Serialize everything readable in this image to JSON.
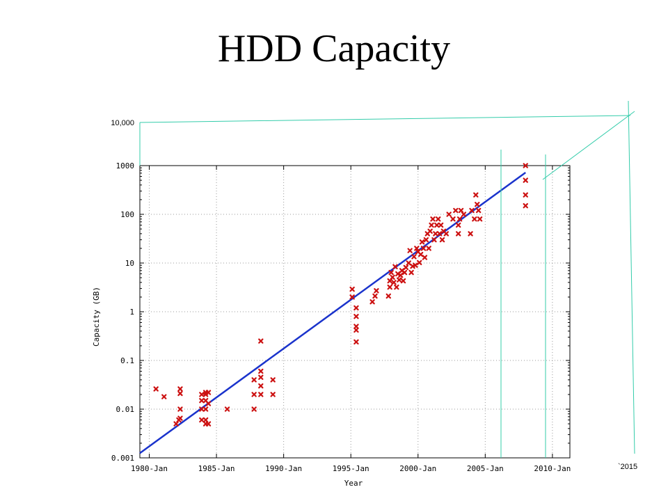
{
  "slide": {
    "title": "HDD Capacity"
  },
  "chart_data": {
    "type": "scatter",
    "title": "HDD Capacity",
    "xlabel": "Year",
    "ylabel": "Capacity (GB)",
    "x_scale": "time",
    "y_scale": "log",
    "xlim": [
      1979.3,
      2011.3
    ],
    "ylim": [
      0.001,
      1000
    ],
    "x_ticks": [
      {
        "label": "1980-Jan",
        "value": 1980
      },
      {
        "label": "1985-Jan",
        "value": 1985
      },
      {
        "label": "1990-Jan",
        "value": 1990
      },
      {
        "label": "1995-Jan",
        "value": 1995
      },
      {
        "label": "2000-Jan",
        "value": 2000
      },
      {
        "label": "2005-Jan",
        "value": 2005
      },
      {
        "label": "2010-Jan",
        "value": 2010
      }
    ],
    "y_ticks": [
      {
        "label": "1000",
        "value": 1000
      },
      {
        "label": "100",
        "value": 100
      },
      {
        "label": "10",
        "value": 10
      },
      {
        "label": "1",
        "value": 1
      },
      {
        "label": "0.1",
        "value": 0.1
      },
      {
        "label": "0.01",
        "value": 0.01
      },
      {
        "label": "0.001",
        "value": 0.001
      }
    ],
    "grid": true,
    "legend": "none",
    "colors": {
      "points": "#cc1111",
      "trend": "#1a33cc",
      "annotation": "#33ccaa"
    },
    "series": [
      {
        "type": "scatter",
        "points": [
          [
            1980.5,
            0.026
          ],
          [
            1981.1,
            0.018
          ],
          [
            1982.0,
            0.005
          ],
          [
            1982.2,
            0.006
          ],
          [
            1982.3,
            0.026
          ],
          [
            1982.3,
            0.021
          ],
          [
            1982.3,
            0.01
          ],
          [
            1982.3,
            0.0065
          ],
          [
            1983.9,
            0.02
          ],
          [
            1983.9,
            0.015
          ],
          [
            1983.9,
            0.01
          ],
          [
            1983.9,
            0.006
          ],
          [
            1984.2,
            0.022
          ],
          [
            1984.2,
            0.02
          ],
          [
            1984.2,
            0.015
          ],
          [
            1984.2,
            0.01
          ],
          [
            1984.2,
            0.006
          ],
          [
            1984.2,
            0.005
          ],
          [
            1984.4,
            0.022
          ],
          [
            1984.4,
            0.013
          ],
          [
            1984.4,
            0.005
          ],
          [
            1985.8,
            0.01
          ],
          [
            1987.8,
            0.04
          ],
          [
            1987.8,
            0.02
          ],
          [
            1987.8,
            0.01
          ],
          [
            1988.3,
            0.25
          ],
          [
            1988.3,
            0.06
          ],
          [
            1988.3,
            0.045
          ],
          [
            1988.3,
            0.03
          ],
          [
            1988.3,
            0.02
          ],
          [
            1989.2,
            0.04
          ],
          [
            1989.2,
            0.02
          ],
          [
            1995.1,
            2.9
          ],
          [
            1995.1,
            2.0
          ],
          [
            1995.4,
            1.2
          ],
          [
            1995.4,
            0.8
          ],
          [
            1995.4,
            0.5
          ],
          [
            1995.4,
            0.42
          ],
          [
            1995.4,
            0.24
          ],
          [
            1996.6,
            1.6
          ],
          [
            1996.8,
            2.1
          ],
          [
            1996.9,
            2.7
          ],
          [
            1997.8,
            2.1
          ],
          [
            1997.9,
            3.2
          ],
          [
            1997.9,
            4.3
          ],
          [
            1998.0,
            6.4
          ],
          [
            1998.1,
            5.1
          ],
          [
            1998.2,
            4.0
          ],
          [
            1998.3,
            8.4
          ],
          [
            1998.4,
            3.2
          ],
          [
            1998.5,
            6.0
          ],
          [
            1998.6,
            4.5
          ],
          [
            1998.7,
            5.6
          ],
          [
            1998.8,
            7.0
          ],
          [
            1998.9,
            4.3
          ],
          [
            1999.0,
            6.4
          ],
          [
            1999.1,
            8.1
          ],
          [
            1999.3,
            10.0
          ],
          [
            1999.4,
            18.0
          ],
          [
            1999.5,
            6.4
          ],
          [
            1999.6,
            8.6
          ],
          [
            1999.7,
            13.5
          ],
          [
            1999.8,
            9.0
          ],
          [
            1999.9,
            20.0
          ],
          [
            2000.0,
            17.0
          ],
          [
            2000.1,
            10.2
          ],
          [
            2000.2,
            15.0
          ],
          [
            2000.3,
            27.0
          ],
          [
            2000.4,
            20.0
          ],
          [
            2000.5,
            13.0
          ],
          [
            2000.6,
            30.0
          ],
          [
            2000.7,
            40.0
          ],
          [
            2000.8,
            20.0
          ],
          [
            2000.9,
            45.0
          ],
          [
            2001.0,
            60.0
          ],
          [
            2001.1,
            80.0
          ],
          [
            2001.2,
            30.0
          ],
          [
            2001.3,
            40.0
          ],
          [
            2001.4,
            60.0
          ],
          [
            2001.5,
            80.0
          ],
          [
            2001.6,
            40.0
          ],
          [
            2001.7,
            60.0
          ],
          [
            2001.8,
            30.0
          ],
          [
            2001.9,
            45.0
          ],
          [
            2002.1,
            40.0
          ],
          [
            2002.3,
            100.0
          ],
          [
            2002.6,
            80.0
          ],
          [
            2002.8,
            120.0
          ],
          [
            2003.0,
            40.0
          ],
          [
            2003.0,
            60.0
          ],
          [
            2003.1,
            80.0
          ],
          [
            2003.2,
            120.0
          ],
          [
            2003.4,
            100.0
          ],
          [
            2003.9,
            40.0
          ],
          [
            2004.0,
            120.0
          ],
          [
            2004.2,
            80.0
          ],
          [
            2004.3,
            250.0
          ],
          [
            2004.4,
            160.0
          ],
          [
            2004.5,
            120.0
          ],
          [
            2004.6,
            80.0
          ],
          [
            2008.0,
            1000.0
          ],
          [
            2008.0,
            500.0
          ],
          [
            2008.0,
            250.0
          ],
          [
            2008.0,
            150.0
          ]
        ]
      },
      {
        "type": "line",
        "points": [
          [
            1979.3,
            0.00125
          ],
          [
            2008.0,
            720
          ]
        ]
      }
    ],
    "annotations": [
      {
        "type": "label",
        "text": "10,000"
      },
      {
        "type": "label",
        "text": "`2015"
      },
      {
        "type": "extrapolation-line",
        "points": [
          [
            2008.0,
            1000
          ],
          [
            2013.2,
            10000
          ]
        ]
      }
    ]
  }
}
